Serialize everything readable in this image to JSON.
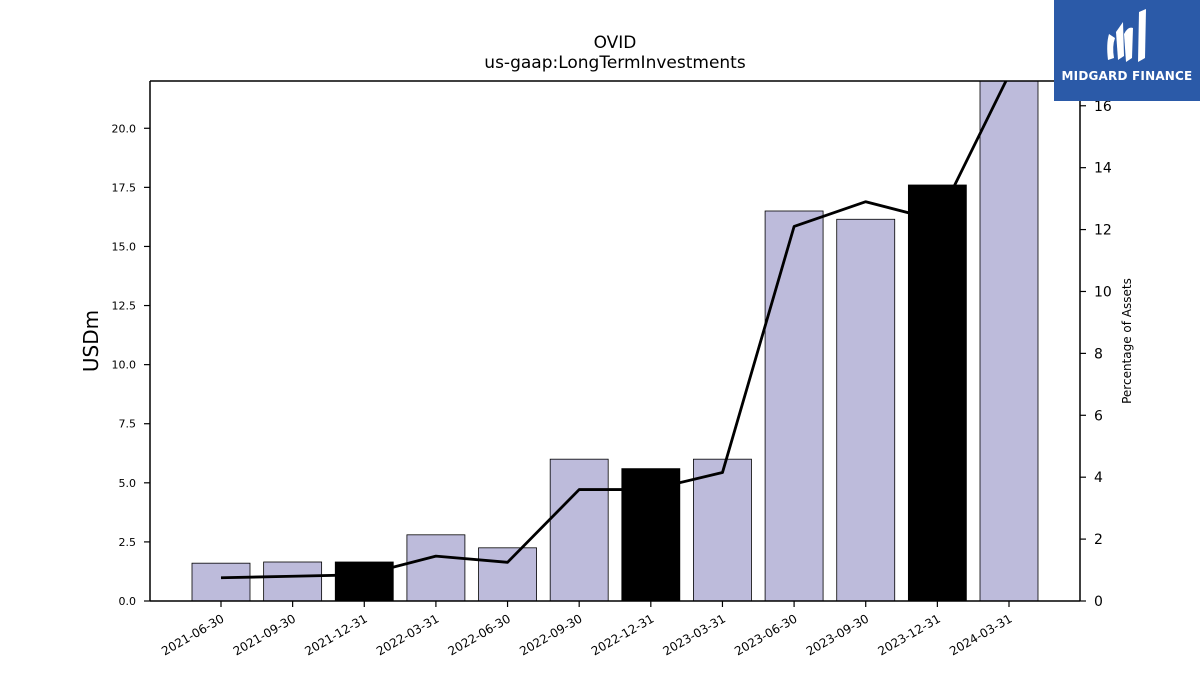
{
  "chart_data": {
    "type": "bar",
    "title": "OVID",
    "subtitle": "us-gaap:LongTermInvestments",
    "ylabel": "USDm",
    "ylabel_right": "Percentage of Assets",
    "categories": [
      "2021-06-30",
      "2021-09-30",
      "2021-12-31",
      "2022-03-31",
      "2022-06-30",
      "2022-09-30",
      "2022-12-31",
      "2023-03-31",
      "2023-06-30",
      "2023-09-30",
      "2023-12-31",
      "2024-03-31"
    ],
    "series": [
      {
        "values": [
          1.6,
          1.65,
          1.65,
          2.8,
          2.25,
          6.0,
          5.6,
          6.0,
          16.5,
          16.15,
          17.6,
          22.1
        ],
        "colors": [
          "#bdbbdb",
          "#bdbbdb",
          "#000000",
          "#bdbbdb",
          "#bdbbdb",
          "#bdbbdb",
          "#000000",
          "#bdbbdb",
          "#bdbbdb",
          "#bdbbdb",
          "#000000",
          "#bdbbdb"
        ]
      },
      {
        "type": "line",
        "axis": "right",
        "values": [
          0.75,
          0.8,
          0.85,
          1.45,
          1.25,
          3.6,
          3.6,
          4.15,
          12.1,
          12.9,
          12.3,
          17.0
        ],
        "color": "#000000"
      }
    ],
    "ylim": [
      0,
      22
    ],
    "yticks": [
      "0.0",
      "2.5",
      "5.0",
      "7.5",
      "10.0",
      "12.5",
      "15.0",
      "17.5",
      "20.0"
    ],
    "ylim_right": [
      0,
      16.8
    ],
    "yticks_right": [
      "0",
      "2",
      "4",
      "6",
      "8",
      "10",
      "12",
      "14",
      "16"
    ],
    "grid": false,
    "bar_color": "#bdbbdb",
    "highlight_color": "#000000"
  },
  "logo": {
    "text": "MIDGARD FINANCE",
    "background": "#2b5aa8"
  }
}
